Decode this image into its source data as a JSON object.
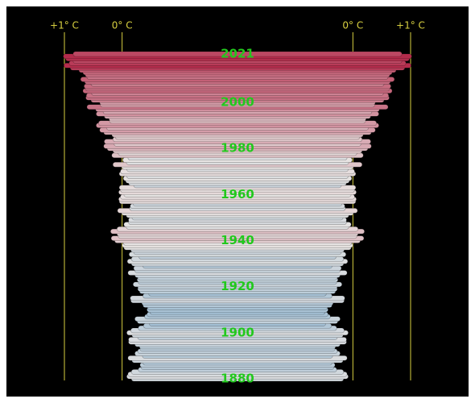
{
  "chart_data": {
    "type": "bar",
    "x": [
      1880,
      1881,
      1882,
      1883,
      1884,
      1885,
      1886,
      1887,
      1888,
      1889,
      1890,
      1891,
      1892,
      1893,
      1894,
      1895,
      1896,
      1897,
      1898,
      1899,
      1900,
      1901,
      1902,
      1903,
      1904,
      1905,
      1906,
      1907,
      1908,
      1909,
      1910,
      1911,
      1912,
      1913,
      1914,
      1915,
      1916,
      1917,
      1918,
      1919,
      1920,
      1921,
      1922,
      1923,
      1924,
      1925,
      1926,
      1927,
      1928,
      1929,
      1930,
      1931,
      1932,
      1933,
      1934,
      1935,
      1936,
      1937,
      1938,
      1939,
      1940,
      1941,
      1942,
      1943,
      1944,
      1945,
      1946,
      1947,
      1948,
      1949,
      1950,
      1951,
      1952,
      1953,
      1954,
      1955,
      1956,
      1957,
      1958,
      1959,
      1960,
      1961,
      1962,
      1963,
      1964,
      1965,
      1966,
      1967,
      1968,
      1969,
      1970,
      1971,
      1972,
      1973,
      1974,
      1975,
      1976,
      1977,
      1978,
      1979,
      1980,
      1981,
      1982,
      1983,
      1984,
      1985,
      1986,
      1987,
      1988,
      1989,
      1990,
      1991,
      1992,
      1993,
      1994,
      1995,
      1996,
      1997,
      1998,
      1999,
      2000,
      2001,
      2002,
      2003,
      2004,
      2005,
      2006,
      2007,
      2008,
      2009,
      2010,
      2011,
      2012,
      2013,
      2014,
      2015,
      2016,
      2017,
      2018,
      2019,
      2020,
      2021
    ],
    "values": [
      -0.16,
      -0.08,
      -0.1,
      -0.16,
      -0.28,
      -0.33,
      -0.31,
      -0.36,
      -0.17,
      -0.1,
      -0.35,
      -0.22,
      -0.27,
      -0.31,
      -0.3,
      -0.22,
      -0.11,
      -0.11,
      -0.27,
      -0.17,
      -0.08,
      -0.15,
      -0.28,
      -0.37,
      -0.47,
      -0.26,
      -0.22,
      -0.39,
      -0.43,
      -0.48,
      -0.43,
      -0.44,
      -0.36,
      -0.34,
      -0.15,
      -0.14,
      -0.36,
      -0.46,
      -0.3,
      -0.27,
      -0.27,
      -0.19,
      -0.28,
      -0.26,
      -0.27,
      -0.22,
      -0.1,
      -0.22,
      -0.2,
      -0.36,
      -0.16,
      -0.09,
      -0.16,
      -0.29,
      -0.12,
      -0.2,
      -0.15,
      -0.03,
      0.0,
      -0.02,
      0.13,
      0.19,
      0.07,
      0.09,
      0.2,
      0.09,
      -0.07,
      -0.03,
      -0.11,
      -0.11,
      -0.17,
      -0.07,
      0.01,
      0.08,
      -0.13,
      -0.14,
      -0.19,
      0.05,
      0.06,
      0.03,
      -0.03,
      0.06,
      0.03,
      0.05,
      -0.2,
      -0.11,
      -0.06,
      -0.02,
      -0.08,
      0.05,
      0.03,
      -0.08,
      0.01,
      0.16,
      -0.07,
      -0.01,
      -0.1,
      0.18,
      0.07,
      0.16,
      0.26,
      0.32,
      0.14,
      0.31,
      0.16,
      0.12,
      0.18,
      0.32,
      0.39,
      0.27,
      0.45,
      0.41,
      0.22,
      0.23,
      0.31,
      0.45,
      0.33,
      0.46,
      0.61,
      0.38,
      0.39,
      0.54,
      0.63,
      0.62,
      0.53,
      0.68,
      0.64,
      0.66,
      0.54,
      0.65,
      0.72,
      0.61,
      0.64,
      0.68,
      0.75,
      0.9,
      1.01,
      0.92,
      0.85,
      0.98,
      1.02,
      0.85
    ],
    "xlim": [
      -2,
      1
    ],
    "xticks": [
      {
        "value": 1,
        "label": "+1° C"
      },
      {
        "value": 0,
        "label": "0° C"
      }
    ],
    "ylim": [
      1880,
      2021
    ],
    "yticks": [
      1880,
      1900,
      1920,
      1940,
      1960,
      1980,
      2000,
      2021
    ],
    "color_scale": [
      "#9fbdd3",
      "#e8e4e2",
      "#b42c4c"
    ],
    "tick_color": "#d8d040",
    "label_color": "#22c81e"
  }
}
